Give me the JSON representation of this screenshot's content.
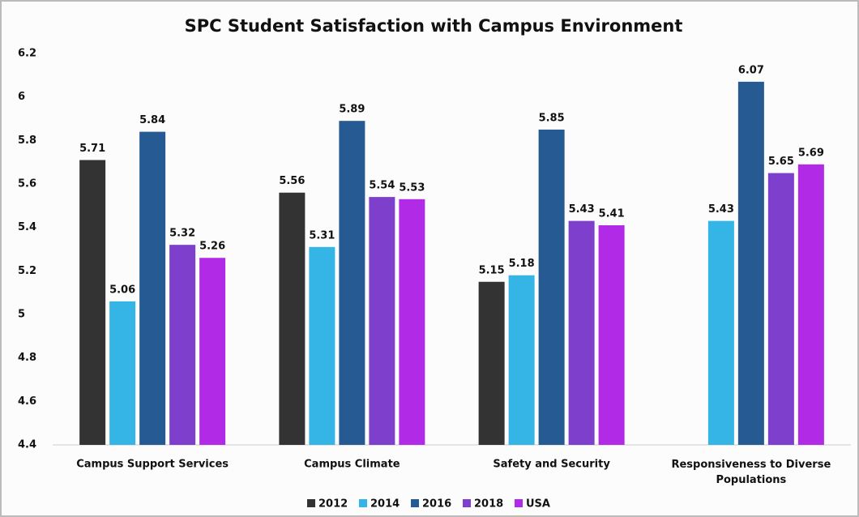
{
  "chart_data": {
    "type": "bar",
    "title": "SPC Student Satisfaction with Campus Environment",
    "categories": [
      "Campus Support Services",
      "Campus Climate",
      "Safety and Security",
      "Responsiveness to Diverse Populations"
    ],
    "series": [
      {
        "name": "2012",
        "color": "#333333",
        "values": [
          5.71,
          5.56,
          5.15,
          null
        ]
      },
      {
        "name": "2014",
        "color": "#35b4e6",
        "values": [
          5.06,
          5.31,
          5.18,
          5.43
        ]
      },
      {
        "name": "2016",
        "color": "#255a92",
        "values": [
          5.84,
          5.89,
          5.85,
          6.07
        ]
      },
      {
        "name": "2018",
        "color": "#7d3fcc",
        "values": [
          5.32,
          5.54,
          5.43,
          5.65
        ]
      },
      {
        "name": "USA",
        "color": "#b12ae6",
        "values": [
          5.26,
          5.53,
          5.41,
          5.69
        ]
      }
    ],
    "ylim": [
      4.4,
      6.2
    ],
    "yticks": [
      4.4,
      4.6,
      4.8,
      5,
      5.2,
      5.4,
      5.6,
      5.8,
      6,
      6.2
    ],
    "grid": false,
    "legend": "bottom"
  }
}
